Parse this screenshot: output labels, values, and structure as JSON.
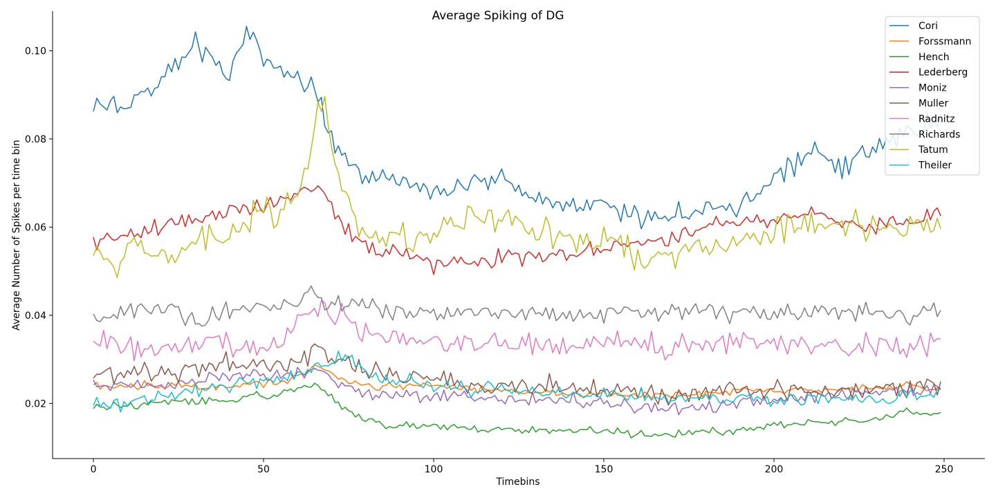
{
  "chart_data": {
    "type": "line",
    "title": "Average Spiking of DG",
    "xlabel": "Timebins",
    "ylabel": "Average Number of Spikes per time bin",
    "xlim": [
      -12,
      262
    ],
    "ylim": [
      0.0075,
      0.109
    ],
    "xticks": [
      0,
      50,
      100,
      150,
      200,
      250
    ],
    "yticks": [
      0.02,
      0.04,
      0.06,
      0.08,
      0.1
    ],
    "xtick_labels": [
      "0",
      "50",
      "100",
      "150",
      "200",
      "250"
    ],
    "ytick_labels": [
      "0.02",
      "0.04",
      "0.06",
      "0.08",
      "0.10"
    ],
    "n_points": 250,
    "grid": false,
    "legend_position": "top-right",
    "series": [
      {
        "name": "Cori",
        "color": "#1f77b4",
        "noise": 0.0022,
        "anchors": [
          [
            0,
            0.087
          ],
          [
            10,
            0.088
          ],
          [
            20,
            0.093
          ],
          [
            30,
            0.102
          ],
          [
            40,
            0.094
          ],
          [
            45,
            0.103
          ],
          [
            55,
            0.095
          ],
          [
            60,
            0.094
          ],
          [
            65,
            0.09
          ],
          [
            68,
            0.085
          ],
          [
            72,
            0.077
          ],
          [
            80,
            0.071
          ],
          [
            90,
            0.071
          ],
          [
            100,
            0.069
          ],
          [
            110,
            0.07
          ],
          [
            120,
            0.07
          ],
          [
            130,
            0.067
          ],
          [
            140,
            0.065
          ],
          [
            150,
            0.066
          ],
          [
            160,
            0.062
          ],
          [
            170,
            0.063
          ],
          [
            180,
            0.064
          ],
          [
            190,
            0.065
          ],
          [
            200,
            0.071
          ],
          [
            205,
            0.074
          ],
          [
            212,
            0.078
          ],
          [
            220,
            0.073
          ],
          [
            230,
            0.079
          ],
          [
            240,
            0.081
          ],
          [
            249,
            0.085
          ]
        ]
      },
      {
        "name": "Forssmann",
        "color": "#ff7f0e",
        "noise": 0.0008,
        "anchors": [
          [
            0,
            0.024
          ],
          [
            20,
            0.024
          ],
          [
            40,
            0.024
          ],
          [
            55,
            0.025
          ],
          [
            62,
            0.027
          ],
          [
            66,
            0.029
          ],
          [
            72,
            0.026
          ],
          [
            80,
            0.024
          ],
          [
            100,
            0.024
          ],
          [
            120,
            0.023
          ],
          [
            150,
            0.022
          ],
          [
            170,
            0.022
          ],
          [
            200,
            0.023
          ],
          [
            220,
            0.023
          ],
          [
            240,
            0.024
          ],
          [
            249,
            0.023
          ]
        ]
      },
      {
        "name": "Hench",
        "color": "#2ca02c",
        "noise": 0.0008,
        "anchors": [
          [
            0,
            0.019
          ],
          [
            20,
            0.02
          ],
          [
            40,
            0.021
          ],
          [
            55,
            0.022
          ],
          [
            63,
            0.024
          ],
          [
            68,
            0.023
          ],
          [
            72,
            0.02
          ],
          [
            78,
            0.017
          ],
          [
            85,
            0.015
          ],
          [
            100,
            0.015
          ],
          [
            120,
            0.014
          ],
          [
            150,
            0.014
          ],
          [
            160,
            0.013
          ],
          [
            170,
            0.013
          ],
          [
            190,
            0.014
          ],
          [
            200,
            0.015
          ],
          [
            220,
            0.016
          ],
          [
            235,
            0.017
          ],
          [
            240,
            0.018
          ],
          [
            249,
            0.018
          ]
        ]
      },
      {
        "name": "Lederberg",
        "color": "#d62728",
        "noise": 0.0017,
        "anchors": [
          [
            0,
            0.057
          ],
          [
            10,
            0.058
          ],
          [
            20,
            0.06
          ],
          [
            30,
            0.062
          ],
          [
            40,
            0.064
          ],
          [
            50,
            0.064
          ],
          [
            60,
            0.068
          ],
          [
            66,
            0.069
          ],
          [
            70,
            0.065
          ],
          [
            75,
            0.058
          ],
          [
            82,
            0.055
          ],
          [
            90,
            0.054
          ],
          [
            100,
            0.052
          ],
          [
            110,
            0.052
          ],
          [
            120,
            0.053
          ],
          [
            130,
            0.053
          ],
          [
            140,
            0.054
          ],
          [
            150,
            0.055
          ],
          [
            160,
            0.057
          ],
          [
            170,
            0.057
          ],
          [
            180,
            0.06
          ],
          [
            190,
            0.061
          ],
          [
            200,
            0.062
          ],
          [
            210,
            0.063
          ],
          [
            220,
            0.061
          ],
          [
            230,
            0.06
          ],
          [
            240,
            0.061
          ],
          [
            249,
            0.063
          ]
        ]
      },
      {
        "name": "Moniz",
        "color": "#9467bd",
        "noise": 0.0013,
        "anchors": [
          [
            0,
            0.024
          ],
          [
            20,
            0.024
          ],
          [
            30,
            0.025
          ],
          [
            40,
            0.026
          ],
          [
            55,
            0.026
          ],
          [
            65,
            0.027
          ],
          [
            75,
            0.024
          ],
          [
            85,
            0.022
          ],
          [
            100,
            0.022
          ],
          [
            120,
            0.021
          ],
          [
            140,
            0.021
          ],
          [
            150,
            0.02
          ],
          [
            160,
            0.019
          ],
          [
            170,
            0.019
          ],
          [
            180,
            0.019
          ],
          [
            190,
            0.02
          ],
          [
            200,
            0.021
          ],
          [
            220,
            0.022
          ],
          [
            240,
            0.023
          ],
          [
            249,
            0.024
          ]
        ]
      },
      {
        "name": "Muller",
        "color": "#8c564b",
        "noise": 0.0021,
        "anchors": [
          [
            0,
            0.027
          ],
          [
            20,
            0.027
          ],
          [
            40,
            0.029
          ],
          [
            55,
            0.029
          ],
          [
            62,
            0.031
          ],
          [
            66,
            0.033
          ],
          [
            72,
            0.03
          ],
          [
            80,
            0.028
          ],
          [
            90,
            0.026
          ],
          [
            100,
            0.025
          ],
          [
            120,
            0.024
          ],
          [
            150,
            0.023
          ],
          [
            170,
            0.022
          ],
          [
            200,
            0.023
          ],
          [
            220,
            0.023
          ],
          [
            240,
            0.024
          ],
          [
            249,
            0.024
          ]
        ]
      },
      {
        "name": "Radnitz",
        "color": "#e377c2",
        "noise": 0.0024,
        "anchors": [
          [
            0,
            0.034
          ],
          [
            15,
            0.032
          ],
          [
            30,
            0.034
          ],
          [
            50,
            0.032
          ],
          [
            58,
            0.036
          ],
          [
            63,
            0.04
          ],
          [
            67,
            0.042
          ],
          [
            72,
            0.04
          ],
          [
            80,
            0.036
          ],
          [
            100,
            0.034
          ],
          [
            120,
            0.034
          ],
          [
            150,
            0.033
          ],
          [
            170,
            0.033
          ],
          [
            200,
            0.034
          ],
          [
            220,
            0.033
          ],
          [
            240,
            0.033
          ],
          [
            249,
            0.034
          ]
        ]
      },
      {
        "name": "Richards",
        "color": "#7f7f7f",
        "noise": 0.0019,
        "anchors": [
          [
            0,
            0.039
          ],
          [
            15,
            0.041
          ],
          [
            22,
            0.042
          ],
          [
            28,
            0.038
          ],
          [
            35,
            0.04
          ],
          [
            45,
            0.042
          ],
          [
            55,
            0.042
          ],
          [
            65,
            0.045
          ],
          [
            70,
            0.043
          ],
          [
            80,
            0.042
          ],
          [
            100,
            0.04
          ],
          [
            120,
            0.041
          ],
          [
            140,
            0.04
          ],
          [
            160,
            0.041
          ],
          [
            180,
            0.041
          ],
          [
            200,
            0.04
          ],
          [
            220,
            0.041
          ],
          [
            240,
            0.04
          ],
          [
            249,
            0.041
          ]
        ]
      },
      {
        "name": "Tatum",
        "color": "#bcbd22",
        "noise": 0.0028,
        "anchors": [
          [
            0,
            0.053
          ],
          [
            8,
            0.051
          ],
          [
            12,
            0.058
          ],
          [
            20,
            0.052
          ],
          [
            25,
            0.052
          ],
          [
            30,
            0.058
          ],
          [
            40,
            0.057
          ],
          [
            48,
            0.063
          ],
          [
            55,
            0.064
          ],
          [
            60,
            0.068
          ],
          [
            63,
            0.074
          ],
          [
            66,
            0.088
          ],
          [
            68,
            0.089
          ],
          [
            70,
            0.079
          ],
          [
            74,
            0.068
          ],
          [
            78,
            0.059
          ],
          [
            85,
            0.057
          ],
          [
            95,
            0.058
          ],
          [
            105,
            0.06
          ],
          [
            110,
            0.063
          ],
          [
            115,
            0.061
          ],
          [
            120,
            0.063
          ],
          [
            130,
            0.059
          ],
          [
            140,
            0.058
          ],
          [
            150,
            0.057
          ],
          [
            155,
            0.055
          ],
          [
            160,
            0.052
          ],
          [
            170,
            0.054
          ],
          [
            180,
            0.056
          ],
          [
            190,
            0.057
          ],
          [
            200,
            0.059
          ],
          [
            210,
            0.06
          ],
          [
            220,
            0.06
          ],
          [
            230,
            0.06
          ],
          [
            240,
            0.06
          ],
          [
            249,
            0.06
          ]
        ]
      },
      {
        "name": "Theiler",
        "color": "#17becf",
        "noise": 0.0014,
        "anchors": [
          [
            0,
            0.02
          ],
          [
            10,
            0.02
          ],
          [
            25,
            0.022
          ],
          [
            40,
            0.024
          ],
          [
            55,
            0.026
          ],
          [
            65,
            0.028
          ],
          [
            72,
            0.031
          ],
          [
            76,
            0.03
          ],
          [
            82,
            0.026
          ],
          [
            100,
            0.024
          ],
          [
            120,
            0.023
          ],
          [
            150,
            0.022
          ],
          [
            180,
            0.021
          ],
          [
            200,
            0.021
          ],
          [
            220,
            0.021
          ],
          [
            240,
            0.022
          ],
          [
            249,
            0.022
          ]
        ]
      }
    ]
  }
}
